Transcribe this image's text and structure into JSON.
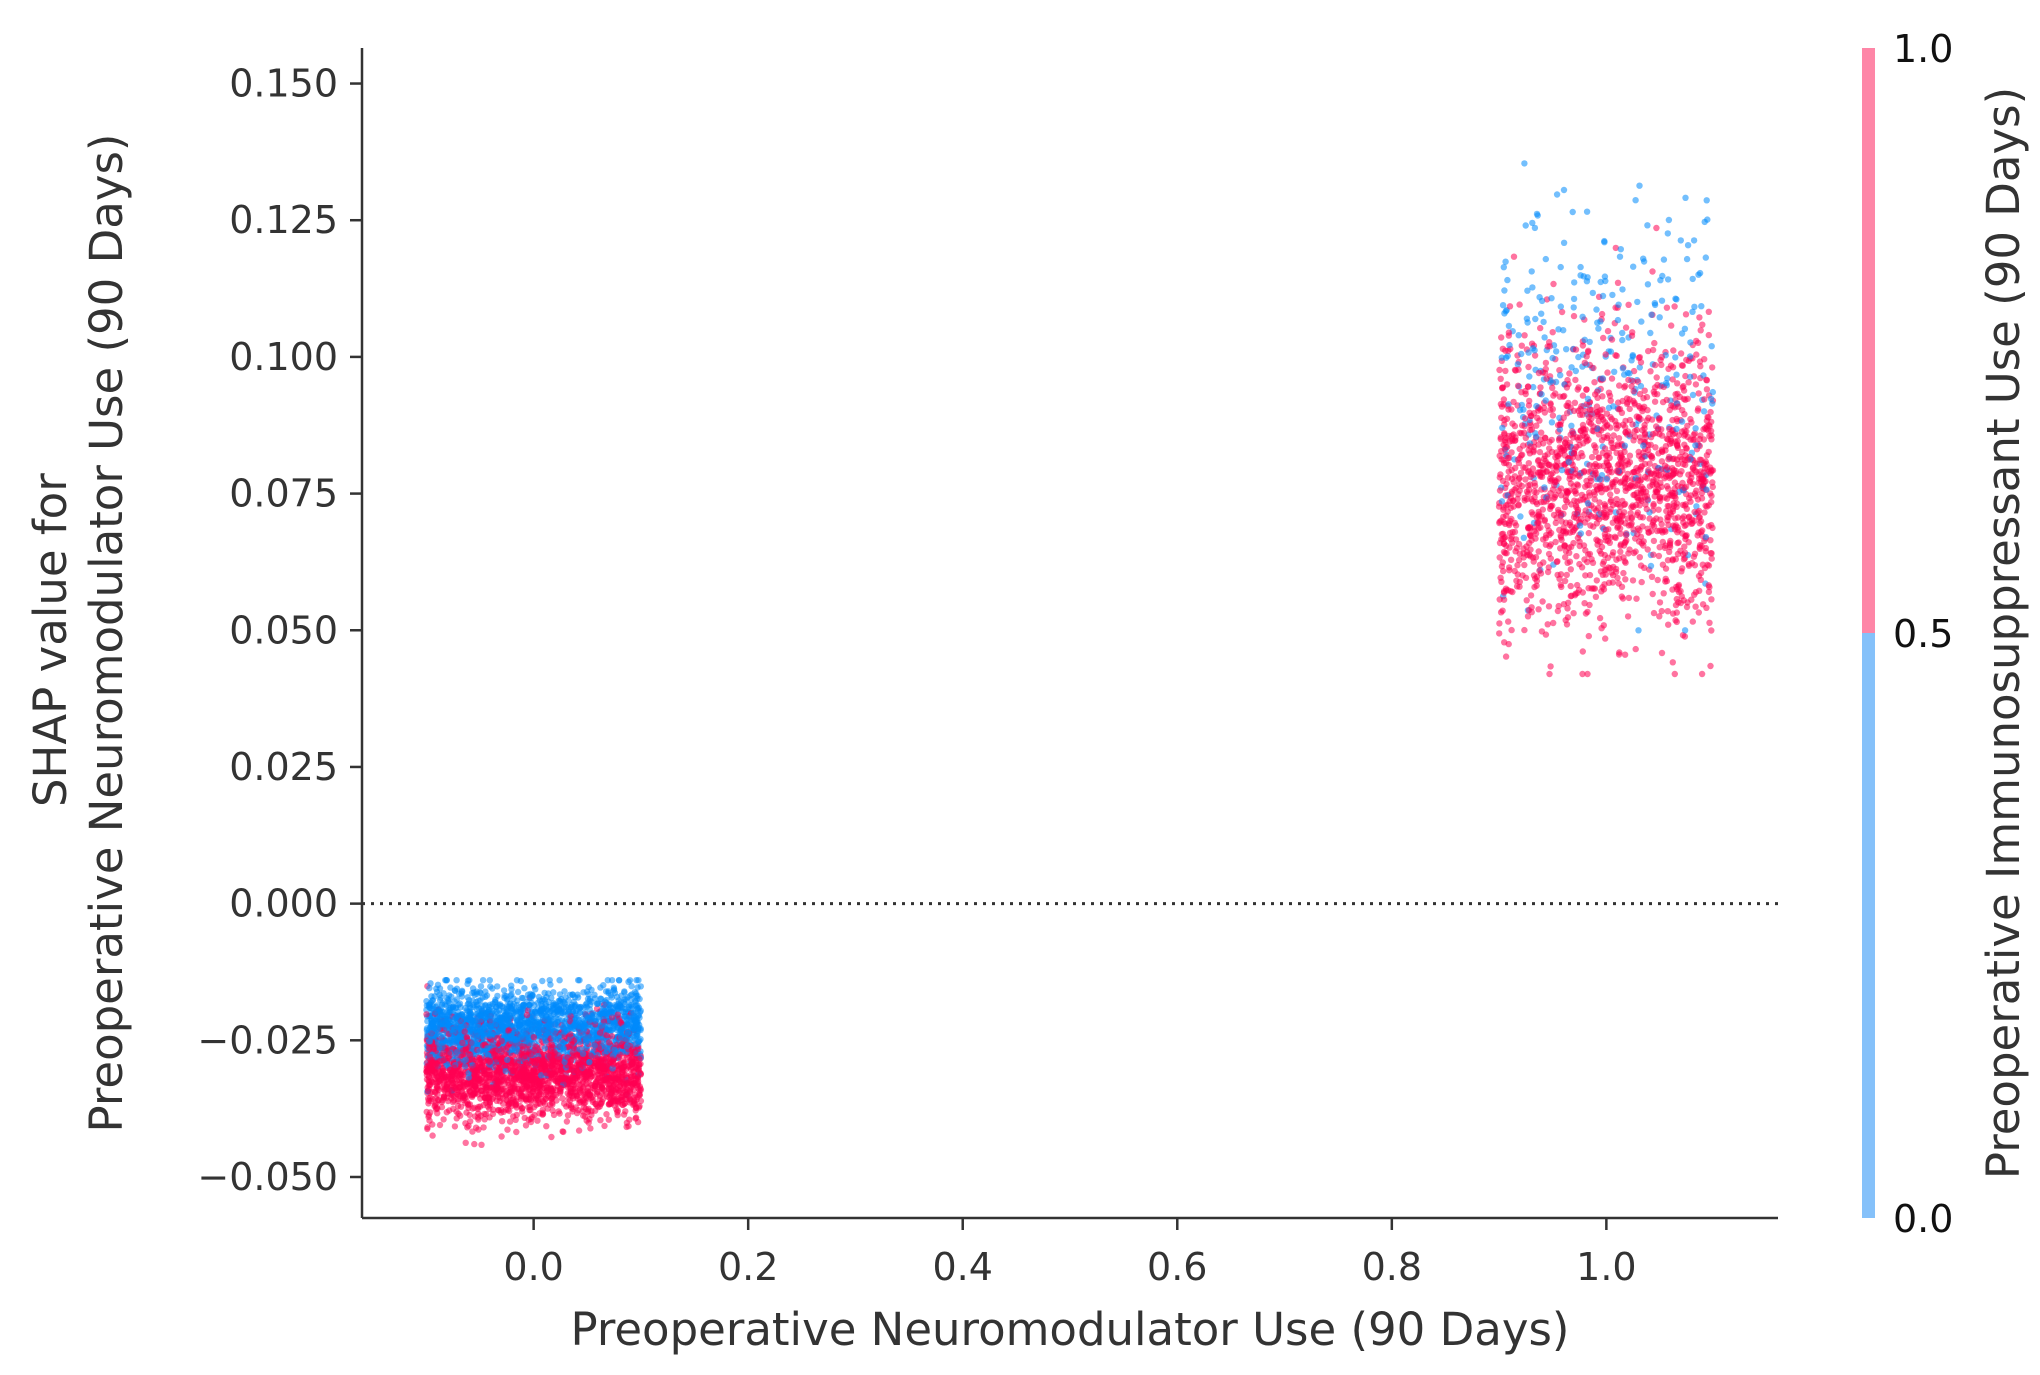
{
  "chart_data": {
    "type": "scatter",
    "title": "",
    "xlabel": "Preoperative Neuromodulator Use (90 Days)",
    "ylabel_lines": [
      "SHAP value for",
      "Preoperative Neuromodulator Use (90 Days)"
    ],
    "xlim": [
      -0.16,
      1.16
    ],
    "ylim": [
      -0.0575,
      0.1565
    ],
    "x_ticks": [
      0.0,
      0.2,
      0.4,
      0.6,
      0.8,
      1.0
    ],
    "x_tick_labels": [
      "0.0",
      "0.2",
      "0.4",
      "0.6",
      "0.8",
      "1.0"
    ],
    "y_ticks": [
      0.15,
      0.125,
      0.1,
      0.075,
      0.05,
      0.025,
      0.0,
      -0.025,
      -0.05
    ],
    "y_tick_labels": [
      "0.150",
      "0.125",
      "0.100",
      "0.075",
      "0.050",
      "0.025",
      "0.000",
      "−0.025",
      "−0.050"
    ],
    "reference_line": {
      "y": 0.0,
      "style": "dotted"
    },
    "grid": false,
    "jitter_x": 0.1,
    "clusters": [
      {
        "x": 0,
        "groups": [
          {
            "color_value": 0,
            "count": 1800,
            "y_mean": -0.0225,
            "y_sd": 0.0035,
            "y_min": -0.035,
            "y_max": -0.014
          },
          {
            "color_value": 1,
            "count": 2200,
            "y_mean": -0.031,
            "y_sd": 0.0042,
            "y_min": -0.047,
            "y_max": -0.01
          }
        ]
      },
      {
        "x": 1,
        "groups": [
          {
            "color_value": 0,
            "count": 300,
            "y_mean": 0.096,
            "y_sd": 0.016,
            "y_min": 0.05,
            "y_max": 0.147
          },
          {
            "color_value": 1,
            "count": 1700,
            "y_mean": 0.077,
            "y_sd": 0.013,
            "y_min": 0.042,
            "y_max": 0.136
          }
        ]
      }
    ],
    "colorbar": {
      "label": "Preoperative Immunosuppressant Use (90 Days)",
      "min": 0.0,
      "max": 1.0,
      "ticks": [
        0.0,
        0.5,
        1.0
      ],
      "tick_labels": [
        "0.0",
        "0.5",
        "1.0"
      ],
      "color_low": "#85c1fa",
      "color_high": "#fe86a7"
    },
    "point_colors": {
      "low": "#008bfb",
      "high": "#ff0052"
    }
  }
}
